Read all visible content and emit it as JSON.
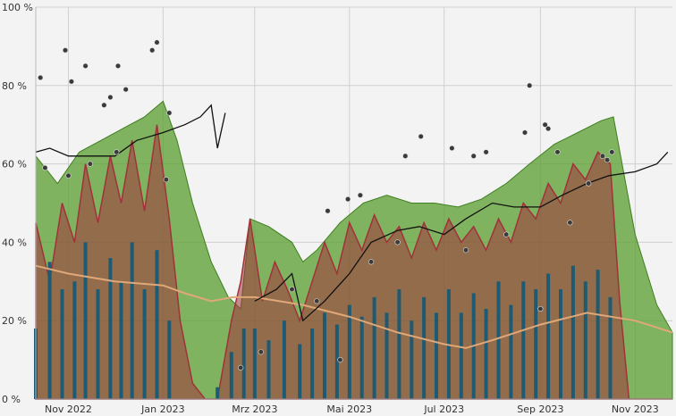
{
  "chart_data": {
    "type": "area",
    "title": "",
    "xlabel": "",
    "ylabel": "",
    "x_range": [
      "2022-10-11",
      "2023-11-25"
    ],
    "ylim": [
      0,
      100
    ],
    "y_ticks": [
      {
        "value": 0,
        "label": "0 %"
      },
      {
        "value": 20,
        "label": "20 %"
      },
      {
        "value": 40,
        "label": "40 %"
      },
      {
        "value": 60,
        "label": "60 %"
      },
      {
        "value": 80,
        "label": "80 %"
      },
      {
        "value": 100,
        "label": "100 %"
      }
    ],
    "x_ticks": [
      {
        "date": "2022-11-01",
        "label": "Nov 2022"
      },
      {
        "date": "2023-01-01",
        "label": "Jan 2023"
      },
      {
        "date": "2023-03-01",
        "label": "Mrz 2023"
      },
      {
        "date": "2023-05-01",
        "label": "Mai 2023"
      },
      {
        "date": "2023-07-01",
        "label": "Jul 2023"
      },
      {
        "date": "2023-09-01",
        "label": "Sep 2023"
      },
      {
        "date": "2023-11-01",
        "label": "Nov 2023"
      }
    ],
    "grid": true,
    "legend": "none",
    "colors": {
      "green_area": "#5a9e2f",
      "red_area": "#a1323a",
      "blue_bars": "#1f5a73",
      "orange_line": "#e0a878",
      "black_line": "#111111",
      "points": "#3a3a3a"
    },
    "series": [
      {
        "key": "green_envelope",
        "style": "area",
        "points": [
          [
            "2022-10-11",
            62
          ],
          [
            "2022-10-25",
            55
          ],
          [
            "2022-11-08",
            63
          ],
          [
            "2022-11-22",
            66
          ],
          [
            "2022-12-06",
            69
          ],
          [
            "2022-12-20",
            72
          ],
          [
            "2023-01-01",
            76
          ],
          [
            "2023-01-10",
            66
          ],
          [
            "2023-01-20",
            50
          ],
          [
            "2023-02-01",
            35
          ],
          [
            "2023-02-12",
            26
          ],
          [
            "2023-02-20",
            23
          ],
          [
            "2023-02-26",
            46
          ],
          [
            "2023-03-10",
            44
          ],
          [
            "2023-03-25",
            40
          ],
          [
            "2023-04-01",
            35
          ],
          [
            "2023-04-10",
            38
          ],
          [
            "2023-04-25",
            45
          ],
          [
            "2023-05-10",
            50
          ],
          [
            "2023-05-25",
            52
          ],
          [
            "2023-06-10",
            50
          ],
          [
            "2023-06-25",
            50
          ],
          [
            "2023-07-10",
            49
          ],
          [
            "2023-07-25",
            51
          ],
          [
            "2023-08-10",
            55
          ],
          [
            "2023-08-25",
            60
          ],
          [
            "2023-09-10",
            65
          ],
          [
            "2023-09-25",
            68
          ],
          [
            "2023-10-10",
            71
          ],
          [
            "2023-10-18",
            72
          ],
          [
            "2023-11-01",
            42
          ],
          [
            "2023-11-15",
            24
          ],
          [
            "2023-11-25",
            17
          ]
        ]
      },
      {
        "key": "red_series",
        "style": "area",
        "points": [
          [
            "2022-10-11",
            45
          ],
          [
            "2022-10-20",
            30
          ],
          [
            "2022-10-28",
            50
          ],
          [
            "2022-11-05",
            40
          ],
          [
            "2022-11-12",
            60
          ],
          [
            "2022-11-20",
            45
          ],
          [
            "2022-11-28",
            62
          ],
          [
            "2022-12-05",
            50
          ],
          [
            "2022-12-12",
            66
          ],
          [
            "2022-12-20",
            48
          ],
          [
            "2022-12-28",
            70
          ],
          [
            "2023-01-05",
            46
          ],
          [
            "2023-01-12",
            20
          ],
          [
            "2023-01-20",
            4
          ],
          [
            "2023-01-28",
            0
          ],
          [
            "2023-02-05",
            0
          ],
          [
            "2023-02-14",
            20
          ],
          [
            "2023-02-20",
            30
          ],
          [
            "2023-02-26",
            46
          ],
          [
            "2023-03-06",
            25
          ],
          [
            "2023-03-14",
            35
          ],
          [
            "2023-03-22",
            28
          ],
          [
            "2023-03-30",
            20
          ],
          [
            "2023-04-07",
            30
          ],
          [
            "2023-04-15",
            40
          ],
          [
            "2023-04-23",
            32
          ],
          [
            "2023-05-01",
            45
          ],
          [
            "2023-05-09",
            38
          ],
          [
            "2023-05-17",
            47
          ],
          [
            "2023-05-25",
            40
          ],
          [
            "2023-06-02",
            44
          ],
          [
            "2023-06-10",
            36
          ],
          [
            "2023-06-18",
            45
          ],
          [
            "2023-06-26",
            38
          ],
          [
            "2023-07-04",
            46
          ],
          [
            "2023-07-12",
            40
          ],
          [
            "2023-07-20",
            44
          ],
          [
            "2023-07-28",
            38
          ],
          [
            "2023-08-05",
            46
          ],
          [
            "2023-08-13",
            40
          ],
          [
            "2023-08-21",
            50
          ],
          [
            "2023-08-29",
            46
          ],
          [
            "2023-09-06",
            55
          ],
          [
            "2023-09-14",
            50
          ],
          [
            "2023-09-22",
            60
          ],
          [
            "2023-09-30",
            56
          ],
          [
            "2023-10-08",
            63
          ],
          [
            "2023-10-16",
            60
          ],
          [
            "2023-10-22",
            25
          ],
          [
            "2023-10-28",
            0
          ],
          [
            "2023-11-25",
            0
          ]
        ]
      },
      {
        "key": "blue_bars",
        "style": "bars",
        "points": [
          [
            "2022-10-11",
            18
          ],
          [
            "2022-10-20",
            35
          ],
          [
            "2022-10-28",
            28
          ],
          [
            "2022-11-05",
            30
          ],
          [
            "2022-11-12",
            40
          ],
          [
            "2022-11-20",
            28
          ],
          [
            "2022-11-28",
            36
          ],
          [
            "2022-12-05",
            30
          ],
          [
            "2022-12-12",
            40
          ],
          [
            "2022-12-20",
            28
          ],
          [
            "2022-12-28",
            38
          ],
          [
            "2023-01-05",
            20
          ],
          [
            "2023-02-05",
            3
          ],
          [
            "2023-02-14",
            12
          ],
          [
            "2023-02-22",
            18
          ],
          [
            "2023-03-01",
            18
          ],
          [
            "2023-03-10",
            15
          ],
          [
            "2023-03-20",
            20
          ],
          [
            "2023-03-30",
            14
          ],
          [
            "2023-04-07",
            18
          ],
          [
            "2023-04-15",
            22
          ],
          [
            "2023-04-23",
            19
          ],
          [
            "2023-05-01",
            24
          ],
          [
            "2023-05-09",
            21
          ],
          [
            "2023-05-17",
            26
          ],
          [
            "2023-05-25",
            22
          ],
          [
            "2023-06-02",
            28
          ],
          [
            "2023-06-10",
            20
          ],
          [
            "2023-06-18",
            26
          ],
          [
            "2023-06-26",
            22
          ],
          [
            "2023-07-04",
            28
          ],
          [
            "2023-07-12",
            22
          ],
          [
            "2023-07-20",
            27
          ],
          [
            "2023-07-28",
            23
          ],
          [
            "2023-08-05",
            30
          ],
          [
            "2023-08-13",
            24
          ],
          [
            "2023-08-21",
            30
          ],
          [
            "2023-08-29",
            28
          ],
          [
            "2023-09-06",
            32
          ],
          [
            "2023-09-14",
            28
          ],
          [
            "2023-09-22",
            34
          ],
          [
            "2023-09-30",
            30
          ],
          [
            "2023-10-08",
            33
          ],
          [
            "2023-10-16",
            26
          ]
        ]
      },
      {
        "key": "orange_line",
        "style": "line",
        "points": [
          [
            "2022-10-11",
            34
          ],
          [
            "2022-11-01",
            32
          ],
          [
            "2022-12-01",
            30
          ],
          [
            "2023-01-01",
            29
          ],
          [
            "2023-01-15",
            27
          ],
          [
            "2023-02-01",
            25
          ],
          [
            "2023-02-15",
            26
          ],
          [
            "2023-03-01",
            26
          ],
          [
            "2023-04-01",
            24
          ],
          [
            "2023-05-01",
            21
          ],
          [
            "2023-06-01",
            17
          ],
          [
            "2023-07-01",
            14
          ],
          [
            "2023-07-15",
            13
          ],
          [
            "2023-08-01",
            15
          ],
          [
            "2023-09-01",
            19
          ],
          [
            "2023-10-01",
            22
          ],
          [
            "2023-11-01",
            20
          ],
          [
            "2023-11-25",
            17
          ]
        ]
      },
      {
        "key": "black_line",
        "style": "line",
        "points": [
          [
            "2022-10-11",
            63
          ],
          [
            "2022-10-20",
            64
          ],
          [
            "2022-11-01",
            62
          ],
          [
            "2022-11-15",
            62
          ],
          [
            "2022-12-01",
            62
          ],
          [
            "2022-12-15",
            66
          ],
          [
            "2023-01-01",
            68
          ],
          [
            "2023-01-15",
            70
          ],
          [
            "2023-01-25",
            72
          ],
          [
            "2023-02-01",
            75
          ],
          [
            "2023-02-05",
            64
          ],
          [
            "2023-02-10",
            73
          ]
        ],
        "points_part2": [
          [
            "2023-03-01",
            25
          ],
          [
            "2023-03-15",
            28
          ],
          [
            "2023-03-25",
            32
          ],
          [
            "2023-04-01",
            20
          ],
          [
            "2023-04-15",
            25
          ],
          [
            "2023-05-01",
            32
          ],
          [
            "2023-05-15",
            40
          ],
          [
            "2023-06-01",
            43
          ],
          [
            "2023-06-15",
            44
          ],
          [
            "2023-07-01",
            42
          ],
          [
            "2023-07-15",
            46
          ],
          [
            "2023-08-01",
            50
          ],
          [
            "2023-08-15",
            49
          ],
          [
            "2023-09-01",
            49
          ],
          [
            "2023-09-15",
            52
          ],
          [
            "2023-10-01",
            55
          ],
          [
            "2023-10-15",
            57
          ],
          [
            "2023-11-01",
            58
          ],
          [
            "2023-11-15",
            60
          ],
          [
            "2023-11-22",
            63
          ]
        ]
      },
      {
        "key": "scatter_points",
        "style": "scatter",
        "points": [
          [
            "2022-10-14",
            82
          ],
          [
            "2022-10-30",
            89
          ],
          [
            "2022-11-03",
            81
          ],
          [
            "2022-11-12",
            85
          ],
          [
            "2022-11-24",
            75
          ],
          [
            "2022-12-03",
            85
          ],
          [
            "2022-12-08",
            79
          ],
          [
            "2022-11-28",
            77
          ],
          [
            "2022-12-25",
            89
          ],
          [
            "2022-12-28",
            91
          ],
          [
            "2023-01-05",
            73
          ],
          [
            "2022-11-15",
            60
          ],
          [
            "2022-10-17",
            59
          ],
          [
            "2022-11-01",
            57
          ],
          [
            "2022-12-02",
            63
          ],
          [
            "2023-01-03",
            56
          ],
          [
            "2023-04-17",
            48
          ],
          [
            "2023-04-30",
            51
          ],
          [
            "2023-05-08",
            52
          ],
          [
            "2023-06-06",
            62
          ],
          [
            "2023-06-16",
            67
          ],
          [
            "2023-07-06",
            64
          ],
          [
            "2023-07-28",
            63
          ],
          [
            "2023-07-20",
            62
          ],
          [
            "2023-08-22",
            68
          ],
          [
            "2023-08-25",
            80
          ],
          [
            "2023-09-04",
            70
          ],
          [
            "2023-09-06",
            69
          ],
          [
            "2023-09-12",
            63
          ],
          [
            "2023-10-11",
            62
          ],
          [
            "2023-10-14",
            61
          ],
          [
            "2023-10-17",
            63
          ],
          [
            "2023-03-25",
            28
          ],
          [
            "2023-04-10",
            25
          ],
          [
            "2023-05-15",
            35
          ],
          [
            "2023-06-01",
            40
          ],
          [
            "2023-07-15",
            38
          ],
          [
            "2023-08-10",
            42
          ],
          [
            "2023-09-20",
            45
          ],
          [
            "2023-10-02",
            55
          ],
          [
            "2023-02-20",
            8
          ],
          [
            "2023-03-05",
            12
          ],
          [
            "2023-04-25",
            10
          ],
          [
            "2023-09-01",
            23
          ]
        ]
      }
    ]
  }
}
